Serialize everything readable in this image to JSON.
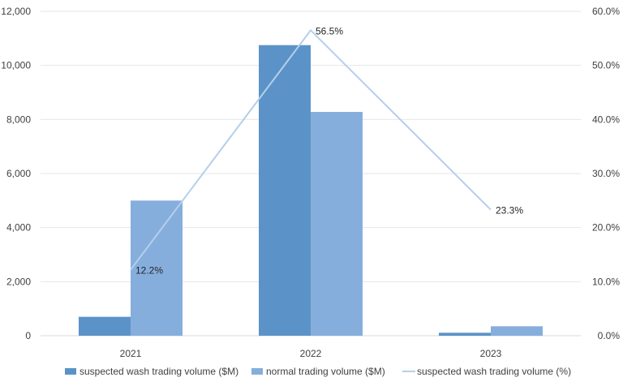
{
  "chart_data": {
    "type": "bar",
    "categories": [
      "2021",
      "2022",
      "2023"
    ],
    "series": [
      {
        "name": "suspected wash trading volume ($M)",
        "type": "bar",
        "axis": "left",
        "color": "#5b93c8",
        "values": [
          700,
          10750,
          110
        ]
      },
      {
        "name": "normal trading volume ($M)",
        "type": "bar",
        "axis": "left",
        "color": "#86aedd",
        "values": [
          5000,
          8280,
          350
        ]
      },
      {
        "name": "suspected wash trading volume (%)",
        "type": "line",
        "axis": "right",
        "color": "#b4cfea",
        "values": [
          12.2,
          56.5,
          23.3
        ],
        "labels": [
          "12.2%",
          "56.5%",
          "23.3%"
        ]
      }
    ],
    "y_left": {
      "min": 0,
      "max": 12000,
      "ticks": [
        0,
        2000,
        4000,
        6000,
        8000,
        10000,
        12000
      ],
      "tick_labels": [
        "0",
        "2,000",
        "4,000",
        "6,000",
        "8,000",
        "10,000",
        "12,000"
      ]
    },
    "y_right": {
      "min": 0,
      "max": 60,
      "ticks": [
        0,
        10,
        20,
        30,
        40,
        50,
        60
      ],
      "tick_labels": [
        "0.0%",
        "10.0%",
        "20.0%",
        "30.0%",
        "40.0%",
        "50.0%",
        "60.0%"
      ]
    },
    "grid": true,
    "legend_position": "bottom"
  }
}
